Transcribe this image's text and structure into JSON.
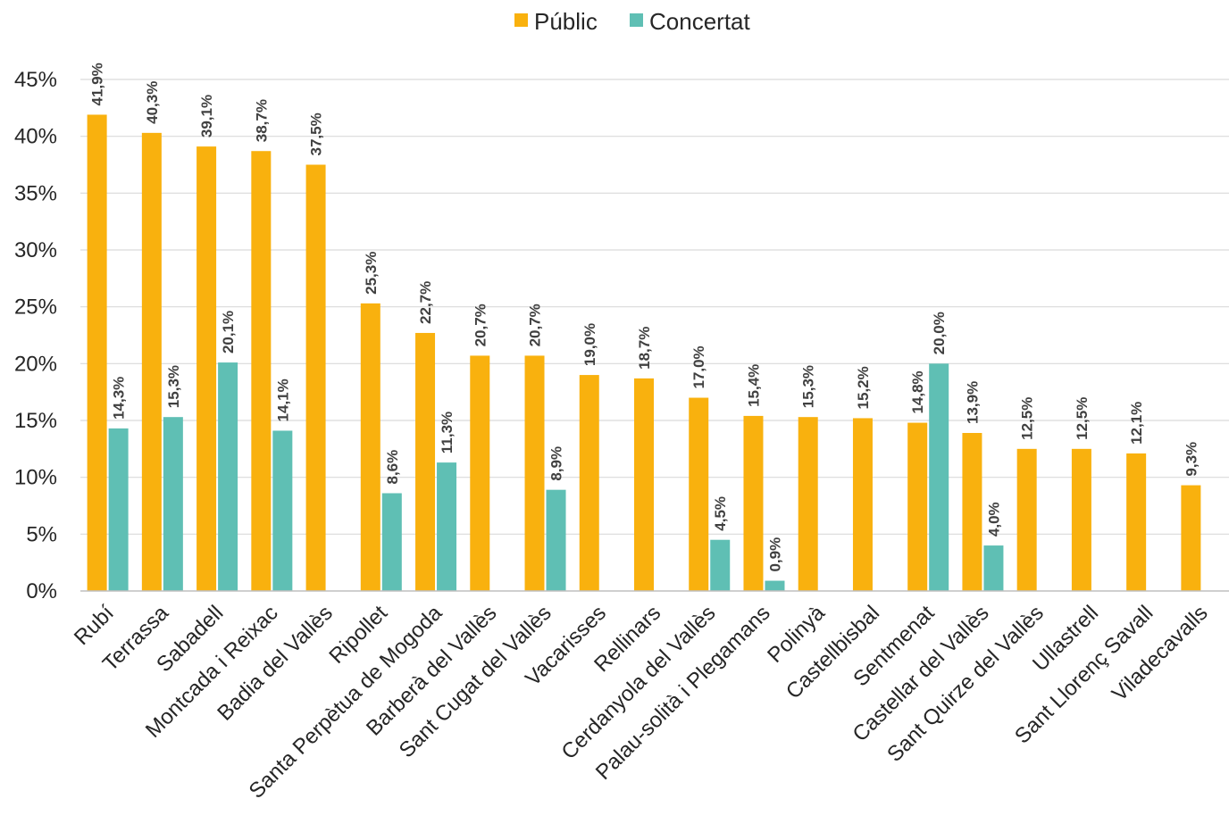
{
  "chart_data": {
    "type": "bar",
    "title": "",
    "xlabel": "",
    "ylabel": "",
    "ylim": [
      0,
      45
    ],
    "yticks": [
      "0%",
      "5%",
      "10%",
      "15%",
      "20%",
      "25%",
      "30%",
      "35%",
      "40%",
      "45%"
    ],
    "grid": true,
    "legend_position": "top-center",
    "categories": [
      "Rubí",
      "Terrassa",
      "Sabadell",
      "Montcada i Reixac",
      "Badia del Vallès",
      "Ripollet",
      "Santa Perpètua de Mogoda",
      "Barberà del Vallès",
      "Sant Cugat del Vallès",
      "Vacarisses",
      "Rellinars",
      "Cerdanyola del Vallès",
      "Palau-solità i Plegamans",
      "Polinyà",
      "Castellbisbal",
      "Sentmenat",
      "Castellar del Vallès",
      "Sant Quirze del Vallès",
      "Ullastrell",
      "Sant Llorenç Savall",
      "Viladecavalls"
    ],
    "series": [
      {
        "name": "Públic",
        "color": "#F9B10E",
        "values": [
          41.9,
          40.3,
          39.1,
          38.7,
          37.5,
          25.3,
          22.7,
          20.7,
          20.7,
          19.0,
          18.7,
          17.0,
          15.4,
          15.3,
          15.2,
          14.8,
          13.9,
          12.5,
          12.5,
          12.1,
          9.3
        ],
        "labels": [
          "41,9%",
          "40,3%",
          "39,1%",
          "38,7%",
          "37,5%",
          "25,3%",
          "22,7%",
          "20,7%",
          "20,7%",
          "19,0%",
          "18,7%",
          "17,0%",
          "15,4%",
          "15,3%",
          "15,2%",
          "14,8%",
          "13,9%",
          "12,5%",
          "12,5%",
          "12,1%",
          "9,3%"
        ]
      },
      {
        "name": "Concertat",
        "color": "#5FBFB4",
        "values": [
          14.3,
          15.3,
          20.1,
          14.1,
          null,
          8.6,
          11.3,
          null,
          8.9,
          null,
          null,
          4.5,
          0.9,
          null,
          null,
          20.0,
          4.0,
          null,
          null,
          null,
          null
        ],
        "labels": [
          "14,3%",
          "15,3%",
          "20,1%",
          "14,1%",
          null,
          "8,6%",
          "11,3%",
          null,
          "8,9%",
          null,
          null,
          "4,5%",
          "0,9%",
          null,
          null,
          "20,0%",
          "4,0%",
          null,
          null,
          null,
          null
        ]
      }
    ]
  }
}
